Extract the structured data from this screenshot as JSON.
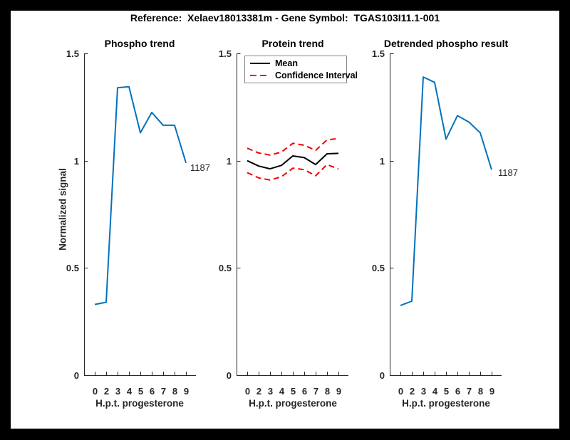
{
  "figure": {
    "title": "Reference:  Xelaev18013381m - Gene Symbol:  TGAS103I11.1-001",
    "background_color": "#000000",
    "canvas_color": "#ffffff",
    "axis_color": "#262626"
  },
  "chart_data": [
    {
      "type": "line",
      "title": "Phospho trend",
      "xlabel": "H.p.t. progesterone",
      "ylabel": "Normalized signal",
      "x_ticklabels": [
        "0",
        "2",
        "3",
        "4",
        "5",
        "6",
        "7",
        "8",
        "9"
      ],
      "y_ticks": [
        0,
        0.5,
        1,
        1.5
      ],
      "y_ticklabels": [
        "0",
        "0.5",
        "1",
        "1.5"
      ],
      "ylim": [
        0,
        1.5
      ],
      "grid": "off",
      "end_label": "1187",
      "series": [
        {
          "name": "phospho-signal",
          "color": "#0072BD",
          "style": "solid",
          "values": [
            0.33,
            0.34,
            1.34,
            1.345,
            1.13,
            1.225,
            1.165,
            1.165,
            0.99
          ]
        }
      ]
    },
    {
      "type": "line",
      "title": "Protein trend",
      "xlabel": "H.p.t. progesterone",
      "ylabel": "",
      "x_ticklabels": [
        "0",
        "2",
        "3",
        "4",
        "5",
        "6",
        "7",
        "8",
        "9"
      ],
      "y_ticks": [
        0,
        0.5,
        1,
        1.5
      ],
      "y_ticklabels": [
        "0",
        "0.5",
        "1",
        "1.5"
      ],
      "ylim": [
        0,
        1.5
      ],
      "grid": "off",
      "legend_position": "top",
      "legend": [
        {
          "label": "Mean",
          "color": "#000000",
          "style": "solid"
        },
        {
          "label": "Confidence Interval",
          "color": "#F20000",
          "style": "dashed"
        }
      ],
      "series": [
        {
          "name": "mean",
          "color": "#000000",
          "style": "solid",
          "values": [
            1.0,
            0.975,
            0.962,
            0.978,
            1.022,
            1.014,
            0.982,
            1.032,
            1.034
          ]
        },
        {
          "name": "ci-upper",
          "color": "#F20000",
          "style": "dashed",
          "values": [
            1.058,
            1.036,
            1.026,
            1.04,
            1.081,
            1.072,
            1.048,
            1.097,
            1.103
          ]
        },
        {
          "name": "ci-lower",
          "color": "#F20000",
          "style": "dashed",
          "values": [
            0.944,
            0.92,
            0.91,
            0.925,
            0.965,
            0.958,
            0.93,
            0.982,
            0.961
          ]
        }
      ]
    },
    {
      "type": "line",
      "title": "Detrended phospho result",
      "xlabel": "H.p.t. progesterone",
      "ylabel": "",
      "x_ticklabels": [
        "0",
        "2",
        "3",
        "4",
        "5",
        "6",
        "7",
        "8",
        "9"
      ],
      "y_ticks": [
        0,
        0.5,
        1,
        1.5
      ],
      "y_ticklabels": [
        "0",
        "0.5",
        "1",
        "1.5"
      ],
      "ylim": [
        0,
        1.5
      ],
      "grid": "off",
      "end_label": "1187",
      "series": [
        {
          "name": "detrended-phospho",
          "color": "#0072BD",
          "style": "solid",
          "values": [
            0.325,
            0.345,
            1.39,
            1.365,
            1.1,
            1.21,
            1.18,
            1.13,
            0.958
          ]
        }
      ]
    }
  ]
}
